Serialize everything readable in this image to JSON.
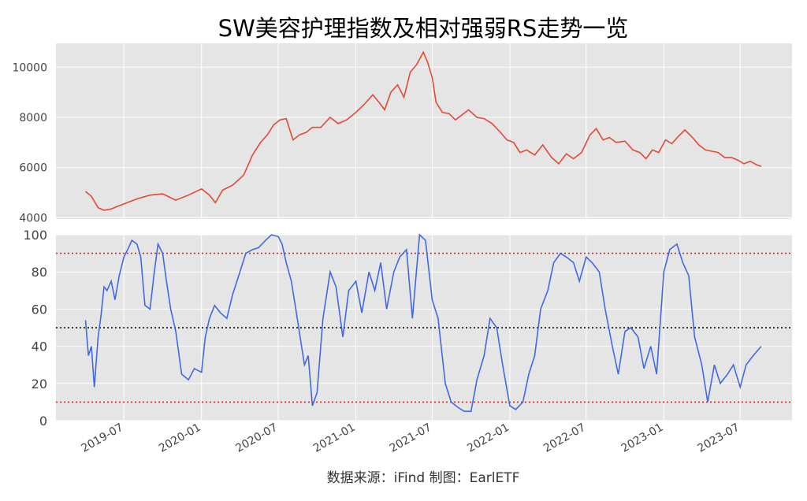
{
  "title": "SW美容护理指数及相对强弱RS走势一览",
  "footer": "数据来源：iFind 制图：EarlETF",
  "colors": {
    "panel_bg": "#e5e5e5",
    "grid": "#ffffff",
    "index_line": "#e24a33",
    "rs_line": "#4169e1",
    "ref_red": "#d62728",
    "ref_black": "#000000"
  },
  "chart_data": [
    {
      "type": "line",
      "panel": "index",
      "ylim": [
        3950,
        10950
      ],
      "yticks": [
        4000,
        6000,
        8000,
        10000
      ],
      "grid": true,
      "x": [
        "2019-04-01",
        "2019-04-15",
        "2019-05-01",
        "2019-05-15",
        "2019-06-01",
        "2019-06-15",
        "2019-07-01",
        "2019-08-01",
        "2019-09-01",
        "2019-10-01",
        "2019-11-01",
        "2019-12-01",
        "2020-01-01",
        "2020-01-20",
        "2020-02-03",
        "2020-02-20",
        "2020-03-15",
        "2020-04-10",
        "2020-05-01",
        "2020-05-20",
        "2020-06-05",
        "2020-06-20",
        "2020-07-05",
        "2020-07-20",
        "2020-08-05",
        "2020-08-20",
        "2020-09-05",
        "2020-09-20",
        "2020-10-10",
        "2020-11-01",
        "2020-11-20",
        "2020-12-10",
        "2021-01-01",
        "2021-01-20",
        "2021-02-10",
        "2021-02-25",
        "2021-03-10",
        "2021-03-25",
        "2021-04-10",
        "2021-04-25",
        "2021-05-10",
        "2021-05-25",
        "2021-06-10",
        "2021-06-20",
        "2021-07-01",
        "2021-07-10",
        "2021-07-25",
        "2021-08-10",
        "2021-08-25",
        "2021-09-10",
        "2021-09-25",
        "2021-10-15",
        "2021-11-01",
        "2021-11-20",
        "2021-12-10",
        "2021-12-25",
        "2022-01-10",
        "2022-01-25",
        "2022-02-10",
        "2022-03-01",
        "2022-03-20",
        "2022-04-10",
        "2022-04-27",
        "2022-05-15",
        "2022-06-01",
        "2022-06-20",
        "2022-07-10",
        "2022-07-25",
        "2022-08-10",
        "2022-08-25",
        "2022-09-10",
        "2022-10-01",
        "2022-10-20",
        "2022-11-05",
        "2022-11-20",
        "2022-12-05",
        "2022-12-20",
        "2023-01-05",
        "2023-01-20",
        "2023-02-05",
        "2023-02-20",
        "2023-03-10",
        "2023-03-25",
        "2023-04-10",
        "2023-04-25",
        "2023-05-10",
        "2023-05-25",
        "2023-06-10",
        "2023-06-25",
        "2023-07-10",
        "2023-07-25",
        "2023-08-10",
        "2023-08-20"
      ],
      "y": [
        5050,
        4850,
        4400,
        4300,
        4350,
        4450,
        4550,
        4750,
        4900,
        4950,
        4700,
        4900,
        5150,
        4900,
        4600,
        5100,
        5300,
        5700,
        6500,
        7000,
        7300,
        7700,
        7900,
        7950,
        7100,
        7300,
        7400,
        7600,
        7600,
        8000,
        7750,
        7900,
        8200,
        8500,
        8900,
        8600,
        8300,
        9000,
        9300,
        8800,
        9800,
        10100,
        10600,
        10200,
        9600,
        8600,
        8200,
        8150,
        7900,
        8100,
        8300,
        8000,
        7950,
        7750,
        7400,
        7100,
        7000,
        6600,
        6700,
        6500,
        6900,
        6400,
        6150,
        6550,
        6350,
        6600,
        7300,
        7550,
        7100,
        7200,
        7000,
        7050,
        6700,
        6600,
        6350,
        6700,
        6600,
        7100,
        6950,
        7250,
        7500,
        7200,
        6900,
        6700,
        6650,
        6600,
        6400,
        6400,
        6300,
        6150,
        6250,
        6100,
        6050
      ]
    },
    {
      "type": "line",
      "panel": "rs",
      "ylim": [
        0,
        100
      ],
      "yticks": [
        0,
        20,
        40,
        60,
        80,
        100
      ],
      "grid": true,
      "reference_lines": [
        90,
        50,
        10
      ],
      "xtick_labels": [
        "2019-07",
        "2020-01",
        "2020-07",
        "2021-01",
        "2021-07",
        "2022-01",
        "2022-07",
        "2023-01",
        "2023-07"
      ],
      "x": [
        "2019-04-01",
        "2019-04-08",
        "2019-04-15",
        "2019-04-22",
        "2019-05-01",
        "2019-05-08",
        "2019-05-15",
        "2019-05-22",
        "2019-06-01",
        "2019-06-10",
        "2019-06-20",
        "2019-07-01",
        "2019-07-10",
        "2019-07-20",
        "2019-08-01",
        "2019-08-10",
        "2019-08-20",
        "2019-09-01",
        "2019-09-10",
        "2019-09-20",
        "2019-10-01",
        "2019-10-10",
        "2019-10-20",
        "2019-11-01",
        "2019-11-15",
        "2019-12-01",
        "2019-12-15",
        "2020-01-01",
        "2020-01-10",
        "2020-01-20",
        "2020-02-01",
        "2020-02-15",
        "2020-03-01",
        "2020-03-15",
        "2020-04-01",
        "2020-04-15",
        "2020-05-01",
        "2020-05-15",
        "2020-06-01",
        "2020-06-15",
        "2020-07-01",
        "2020-07-10",
        "2020-07-20",
        "2020-08-01",
        "2020-08-15",
        "2020-09-01",
        "2020-09-10",
        "2020-09-20",
        "2020-10-01",
        "2020-10-15",
        "2020-11-01",
        "2020-11-15",
        "2020-12-01",
        "2020-12-15",
        "2021-01-01",
        "2021-01-15",
        "2021-02-01",
        "2021-02-15",
        "2021-03-01",
        "2021-03-15",
        "2021-04-01",
        "2021-04-15",
        "2021-05-01",
        "2021-05-15",
        "2021-06-01",
        "2021-06-15",
        "2021-07-01",
        "2021-07-15",
        "2021-08-01",
        "2021-08-15",
        "2021-09-01",
        "2021-09-15",
        "2021-10-01",
        "2021-10-15",
        "2021-11-01",
        "2021-11-15",
        "2021-12-01",
        "2021-12-15",
        "2022-01-01",
        "2022-01-15",
        "2022-02-01",
        "2022-02-15",
        "2022-03-01",
        "2022-03-15",
        "2022-04-01",
        "2022-04-15",
        "2022-05-01",
        "2022-05-15",
        "2022-06-01",
        "2022-06-15",
        "2022-07-01",
        "2022-07-15",
        "2022-08-01",
        "2022-08-15",
        "2022-09-01",
        "2022-09-15",
        "2022-10-01",
        "2022-10-15",
        "2022-11-01",
        "2022-11-15",
        "2022-12-01",
        "2022-12-15",
        "2023-01-01",
        "2023-01-15",
        "2023-02-01",
        "2023-02-15",
        "2023-03-01",
        "2023-03-15",
        "2023-04-01",
        "2023-04-15",
        "2023-05-01",
        "2023-05-15",
        "2023-06-01",
        "2023-06-15",
        "2023-07-01",
        "2023-07-15",
        "2023-08-01",
        "2023-08-20"
      ],
      "y": [
        54,
        35,
        40,
        18,
        45,
        57,
        72,
        70,
        75,
        65,
        78,
        88,
        92,
        97,
        95,
        88,
        62,
        60,
        78,
        95,
        90,
        75,
        60,
        48,
        25,
        22,
        28,
        26,
        45,
        55,
        62,
        58,
        55,
        68,
        80,
        90,
        92,
        93,
        97,
        100,
        99,
        95,
        85,
        75,
        55,
        30,
        35,
        8,
        15,
        55,
        80,
        72,
        45,
        70,
        75,
        58,
        80,
        70,
        85,
        60,
        80,
        88,
        92,
        55,
        100,
        97,
        65,
        55,
        20,
        10,
        7,
        5,
        5,
        22,
        35,
        55,
        50,
        30,
        8,
        6,
        10,
        25,
        35,
        60,
        70,
        85,
        90,
        88,
        85,
        75,
        88,
        85,
        80,
        60,
        40,
        25,
        48,
        50,
        45,
        28,
        40,
        25,
        80,
        92,
        95,
        85,
        78,
        45,
        30,
        10,
        30,
        20,
        25,
        30,
        18,
        30,
        35,
        40
      ]
    }
  ]
}
